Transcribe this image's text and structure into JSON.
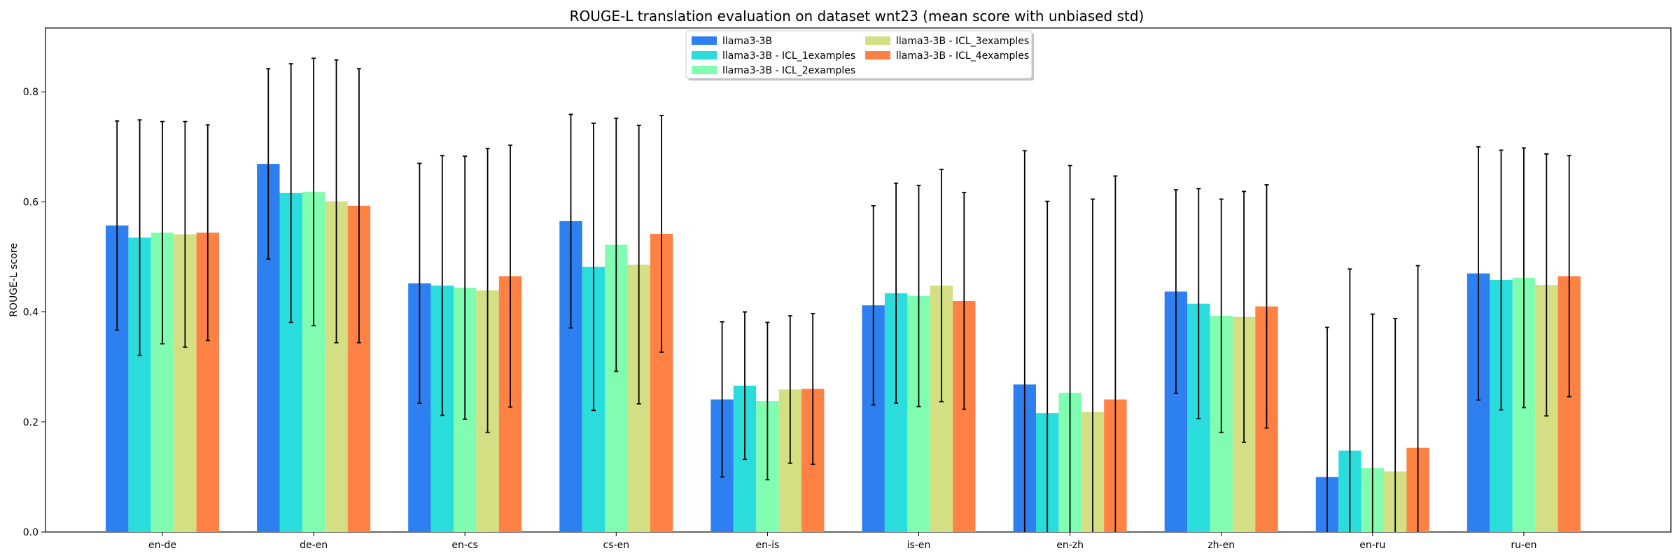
{
  "chart_data": {
    "type": "bar",
    "title": "ROUGE-L translation evaluation on dataset wnt23 (mean score with unbiased std)",
    "xlabel": "",
    "ylabel": "ROUGE-L score",
    "ylim": [
      0,
      0.916
    ],
    "yticks": [
      "0.0",
      "0.2",
      "0.4",
      "0.6",
      "0.8"
    ],
    "categories": [
      "en-de",
      "de-en",
      "en-cs",
      "cs-en",
      "en-is",
      "is-en",
      "en-zh",
      "zh-en",
      "en-ru",
      "ru-en"
    ],
    "legend_position": "top-center",
    "grid": false,
    "series": [
      {
        "name": "llama3-3B",
        "color": "#2e7ff0",
        "values": [
          0.557,
          0.669,
          0.452,
          0.565,
          0.241,
          0.412,
          0.268,
          0.437,
          0.1,
          0.47
        ],
        "std": [
          0.19,
          0.173,
          0.218,
          0.194,
          0.141,
          0.181,
          0.425,
          0.185,
          0.272,
          0.23
        ]
      },
      {
        "name": "llama3-3B - ICL_1examples",
        "color": "#2bdcdc",
        "values": [
          0.535,
          0.616,
          0.448,
          0.482,
          0.266,
          0.434,
          0.216,
          0.415,
          0.148,
          0.458
        ],
        "std": [
          0.214,
          0.235,
          0.236,
          0.261,
          0.134,
          0.2,
          0.385,
          0.209,
          0.33,
          0.236
        ]
      },
      {
        "name": "llama3-3B - ICL_2examples",
        "color": "#80fdb0",
        "values": [
          0.544,
          0.618,
          0.444,
          0.522,
          0.238,
          0.429,
          0.253,
          0.393,
          0.116,
          0.462
        ],
        "std": [
          0.202,
          0.243,
          0.239,
          0.23,
          0.143,
          0.201,
          0.413,
          0.212,
          0.28,
          0.236
        ]
      },
      {
        "name": "llama3-3B - ICL_3examples",
        "color": "#d4de82",
        "values": [
          0.541,
          0.601,
          0.439,
          0.486,
          0.259,
          0.448,
          0.218,
          0.391,
          0.11,
          0.449
        ],
        "std": [
          0.205,
          0.257,
          0.258,
          0.253,
          0.134,
          0.211,
          0.387,
          0.228,
          0.278,
          0.238
        ]
      },
      {
        "name": "llama3-3B - ICL_4examples",
        "color": "#ff8244",
        "values": [
          0.544,
          0.593,
          0.465,
          0.542,
          0.26,
          0.42,
          0.241,
          0.41,
          0.153,
          0.465
        ],
        "std": [
          0.196,
          0.249,
          0.238,
          0.215,
          0.137,
          0.197,
          0.406,
          0.221,
          0.331,
          0.219
        ]
      }
    ]
  }
}
